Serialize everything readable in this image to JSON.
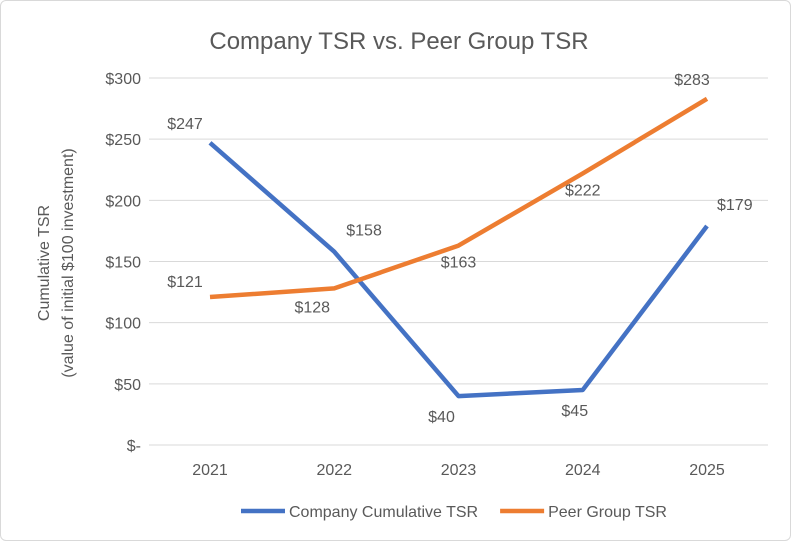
{
  "chart_data": {
    "type": "line",
    "title": "Company TSR vs. Peer Group TSR",
    "ylabel": [
      "Cumulative TSR",
      "(value of initial $100 investment)"
    ],
    "xlabel": "",
    "categories": [
      "2021",
      "2022",
      "2023",
      "2024",
      "2025"
    ],
    "ylim": [
      0,
      300
    ],
    "yticks": [
      0,
      50,
      100,
      150,
      200,
      250,
      300
    ],
    "ytick_labels": [
      "$-",
      "$50",
      "$100",
      "$150",
      "$200",
      "$250",
      "$300"
    ],
    "grid": true,
    "legend": "bottom",
    "series": [
      {
        "name": "Company Cumulative TSR",
        "color": "#4472c4",
        "values": [
          247,
          158,
          40,
          45,
          179
        ],
        "labels": [
          "$247",
          "$158",
          "$40",
          "$45",
          "$179"
        ]
      },
      {
        "name": "Peer Group TSR",
        "color": "#ed7d31",
        "values": [
          121,
          128,
          163,
          222,
          283
        ],
        "labels": [
          "$121",
          "$128",
          "$163",
          "$222",
          "$283"
        ]
      }
    ]
  }
}
